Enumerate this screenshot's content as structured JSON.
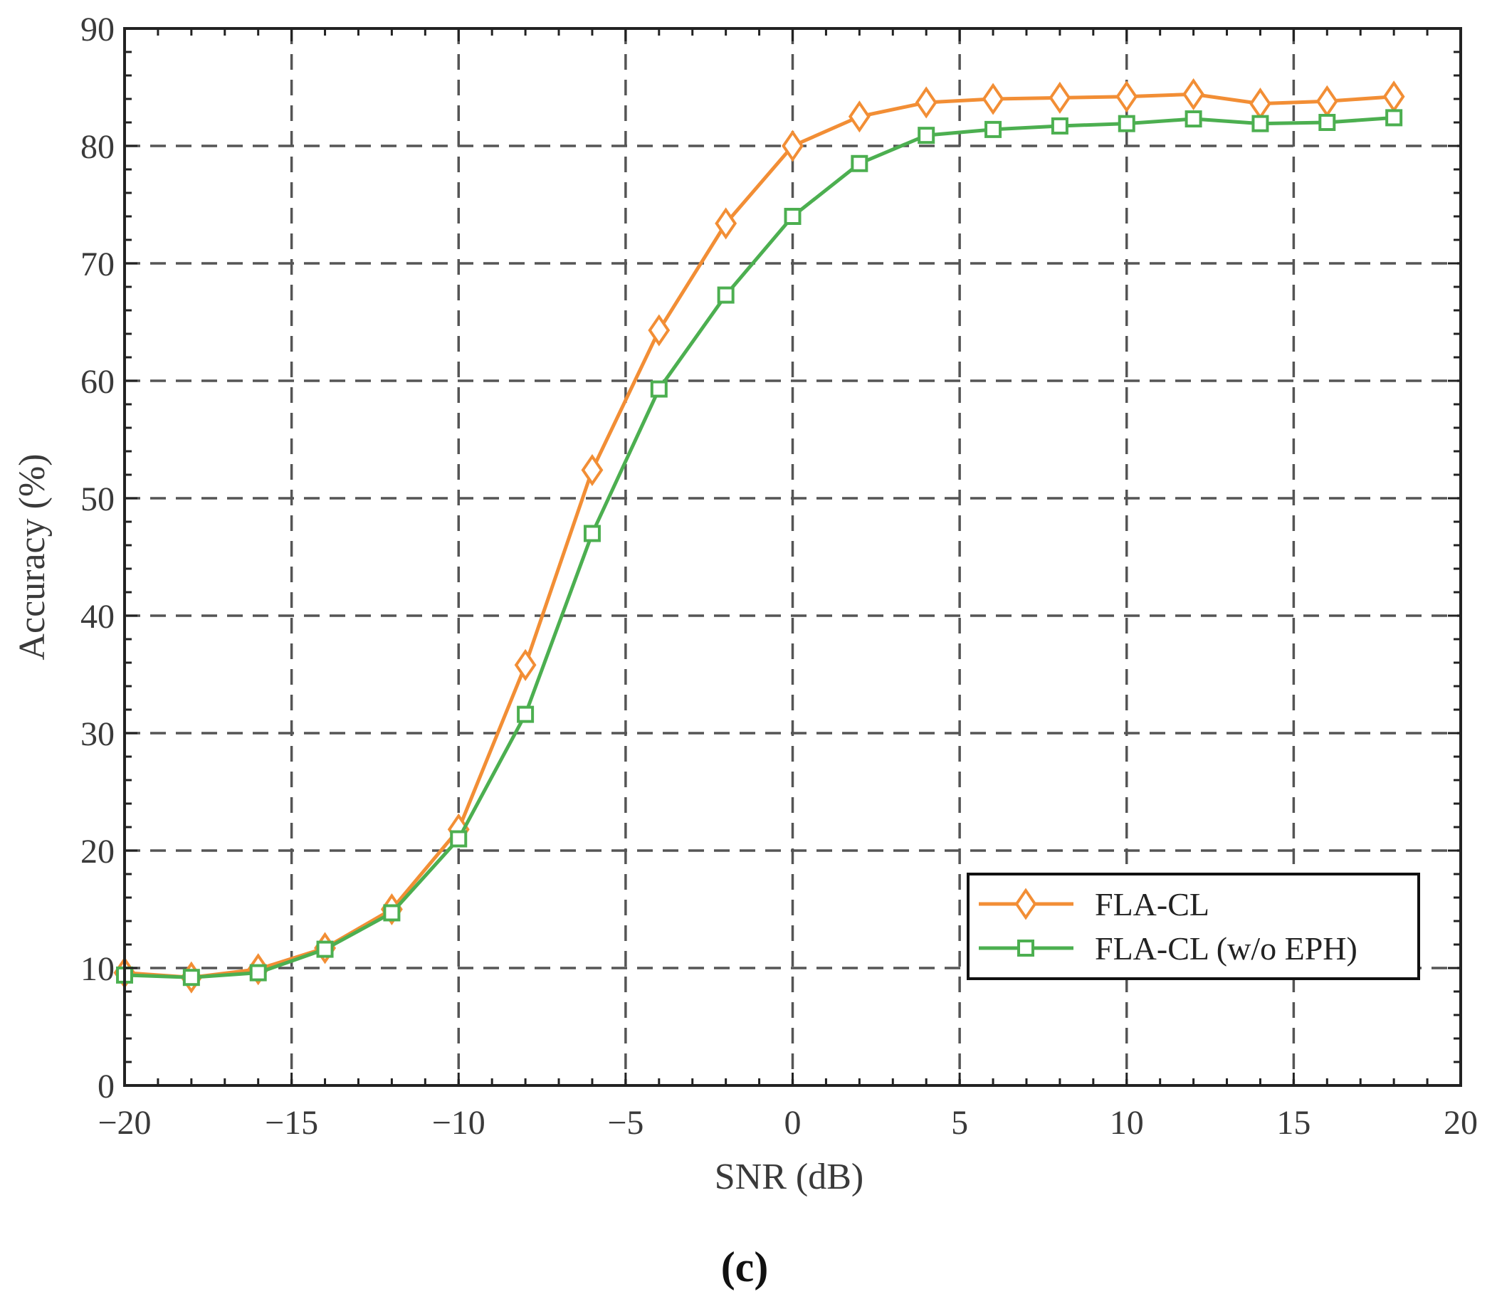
{
  "chart_data": {
    "type": "line",
    "xlabel": "SNR (dB)",
    "ylabel": "Accuracy (%)",
    "xlim": [
      -20,
      20
    ],
    "ylim": [
      0,
      90
    ],
    "x_ticks": [
      -20,
      -15,
      -10,
      -5,
      0,
      5,
      10,
      15,
      20
    ],
    "x_tick_labels": [
      "−20",
      "−15",
      "−10",
      "−5",
      "0",
      "5",
      "10",
      "15",
      "20"
    ],
    "y_ticks": [
      0,
      10,
      20,
      30,
      40,
      50,
      60,
      70,
      80,
      90
    ],
    "y_tick_labels": [
      "0",
      "10",
      "20",
      "30",
      "40",
      "50",
      "60",
      "70",
      "80",
      "90"
    ],
    "grid": true,
    "legend_position": "bottom-right",
    "x": [
      -20,
      -18,
      -16,
      -14,
      -12,
      -10,
      -8,
      -6,
      -4,
      -2,
      0,
      2,
      4,
      6,
      8,
      10,
      12,
      14,
      16,
      18
    ],
    "series": [
      {
        "name": "FLA-CL",
        "color": "#f28e35",
        "marker": "diamond",
        "values": [
          9.6,
          9.2,
          9.9,
          11.7,
          15.0,
          21.8,
          35.8,
          52.4,
          64.3,
          73.4,
          80.0,
          82.5,
          83.7,
          84.0,
          84.1,
          84.2,
          84.4,
          83.6,
          83.8,
          84.2
        ]
      },
      {
        "name": "FLA-CL (w/o EPH)",
        "color": "#4caf50",
        "marker": "square",
        "values": [
          9.4,
          9.2,
          9.6,
          11.6,
          14.7,
          21.0,
          31.6,
          47.0,
          59.3,
          67.3,
          74.0,
          78.5,
          80.9,
          81.4,
          81.7,
          81.9,
          82.3,
          81.9,
          82.0,
          82.4
        ]
      }
    ],
    "panel_label": "(c)"
  }
}
